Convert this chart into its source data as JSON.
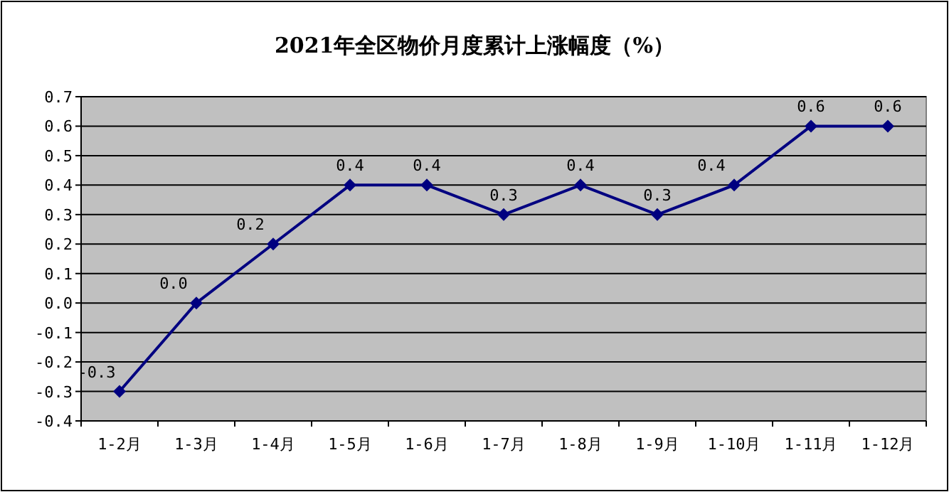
{
  "chart_data": {
    "type": "line",
    "title": "2021年全区物价月度累计上涨幅度（%）",
    "categories": [
      "1-2月",
      "1-3月",
      "1-4月",
      "1-5月",
      "1-6月",
      "1-7月",
      "1-8月",
      "1-9月",
      "1-10月",
      "1-11月",
      "1-12月"
    ],
    "series": [
      {
        "color": "#000080",
        "values": [
          -0.3,
          0.0,
          0.2,
          0.4,
          0.4,
          0.3,
          0.4,
          0.3,
          0.4,
          0.6,
          0.6
        ],
        "value_labels": [
          "-0.3",
          "0.0",
          "0.2",
          "0.4",
          "0.4",
          "0.3",
          "0.4",
          "0.3",
          "0.4",
          "0.6",
          "0.6"
        ]
      }
    ],
    "ylim": [
      -0.4,
      0.7
    ],
    "yticks": [
      -0.4,
      -0.3,
      -0.2,
      -0.1,
      {
        "value": 0,
        "label": "0.0"
      },
      0.1,
      0.2,
      0.3,
      0.4,
      0.5,
      0.6,
      0.7
    ],
    "grid": "y",
    "marker": "diamond",
    "line_style": "solid"
  }
}
